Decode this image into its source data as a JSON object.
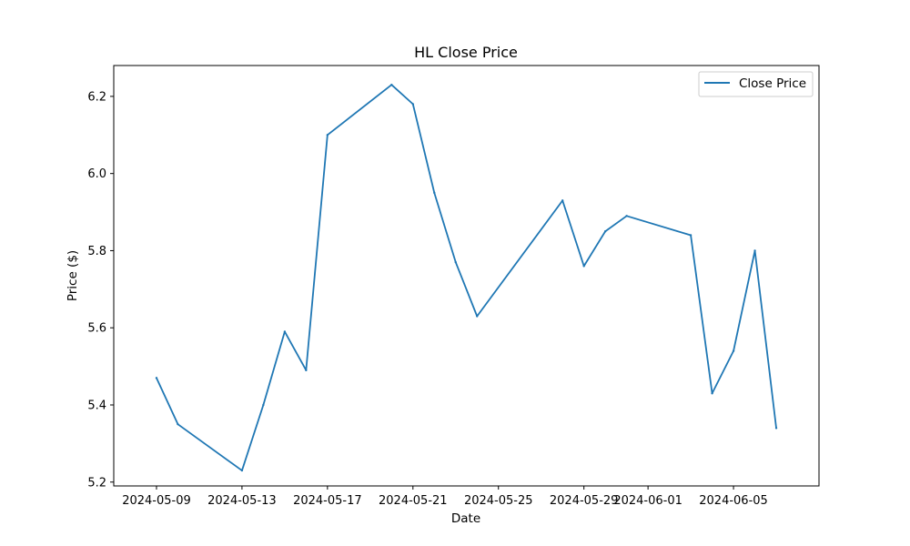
{
  "chart_data": {
    "type": "line",
    "title": "HL Close Price",
    "xlabel": "Date",
    "ylabel": "Price ($)",
    "x_tick_labels": [
      "2024-05-09",
      "2024-05-13",
      "2024-05-17",
      "2024-05-21",
      "2024-05-25",
      "2024-05-29",
      "2024-06-01",
      "2024-06-05"
    ],
    "y_tick_labels": [
      "5.2",
      "5.4",
      "5.6",
      "5.8",
      "6.0",
      "6.2"
    ],
    "xlim": [
      "2024-05-07",
      "2024-06-09"
    ],
    "ylim": [
      5.19,
      6.28
    ],
    "grid": false,
    "legend_position": "top-right",
    "series": [
      {
        "name": "Close Price",
        "color": "#1f77b4",
        "points": [
          {
            "x": "2024-05-09",
            "y": 5.47
          },
          {
            "x": "2024-05-10",
            "y": 5.35
          },
          {
            "x": "2024-05-13",
            "y": 5.23
          },
          {
            "x": "2024-05-14",
            "y": 5.4
          },
          {
            "x": "2024-05-15",
            "y": 5.59
          },
          {
            "x": "2024-05-16",
            "y": 5.49
          },
          {
            "x": "2024-05-17",
            "y": 6.1
          },
          {
            "x": "2024-05-20",
            "y": 6.23
          },
          {
            "x": "2024-05-21",
            "y": 6.18
          },
          {
            "x": "2024-05-22",
            "y": 5.95
          },
          {
            "x": "2024-05-23",
            "y": 5.77
          },
          {
            "x": "2024-05-24",
            "y": 5.63
          },
          {
            "x": "2024-05-28",
            "y": 5.93
          },
          {
            "x": "2024-05-29",
            "y": 5.76
          },
          {
            "x": "2024-05-30",
            "y": 5.85
          },
          {
            "x": "2024-05-31",
            "y": 5.89
          },
          {
            "x": "2024-06-03",
            "y": 5.84
          },
          {
            "x": "2024-06-04",
            "y": 5.43
          },
          {
            "x": "2024-06-05",
            "y": 5.54
          },
          {
            "x": "2024-06-06",
            "y": 5.8
          },
          {
            "x": "2024-06-07",
            "y": 5.34
          }
        ]
      }
    ]
  }
}
